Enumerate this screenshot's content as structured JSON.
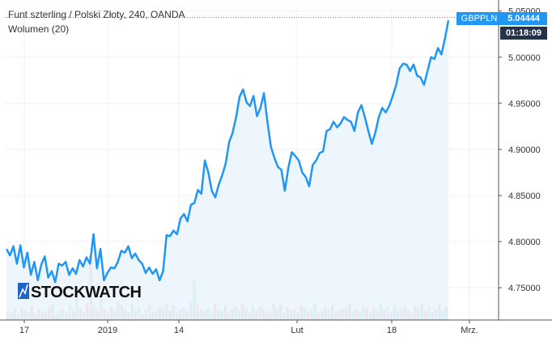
{
  "header": {
    "title": "Funt szterling / Polski Złoty, 240, OANDA",
    "volume_label": "Wolumen (20)"
  },
  "price_badge": {
    "symbol": "GBPPLN",
    "price": "5.04444",
    "countdown": "01:18:09"
  },
  "watermark": "STOCKWATCH",
  "colors": {
    "line": "#2196F3",
    "area": "#EAF4FD",
    "volume_up": "#A9D6D2",
    "volume_down": "#F2B5B5",
    "badge_blue": "#2196F3",
    "badge_dark": "#253248"
  },
  "chart_data": {
    "type": "line",
    "title": "Funt szterling / Polski Złoty, 240, OANDA",
    "ylim": [
      4.715,
      5.055
    ],
    "y_ticks": [
      "4.75000",
      "4.80000",
      "4.85000",
      "4.90000",
      "4.95000",
      "5.00000",
      "5.05000"
    ],
    "x_ticks": [
      "17",
      "2019",
      "14",
      "Lut",
      "18",
      "Mrz."
    ],
    "series": [
      {
        "values": [
          4.792,
          4.785,
          4.795,
          4.776,
          4.796,
          4.772,
          4.788,
          4.764,
          4.778,
          4.758,
          4.775,
          4.784,
          4.761,
          4.768,
          4.756,
          4.776,
          4.774,
          4.778,
          4.764,
          4.771,
          4.765,
          4.78,
          4.773,
          4.783,
          4.776,
          4.808,
          4.771,
          4.792,
          4.758,
          4.766,
          4.772,
          4.771,
          4.778,
          4.79,
          4.788,
          4.795,
          4.782,
          4.787,
          4.78,
          4.776,
          4.766,
          4.772,
          4.765,
          4.77,
          4.758,
          4.768,
          4.807,
          4.806,
          4.812,
          4.808,
          4.825,
          4.83,
          4.822,
          4.84,
          4.842,
          4.856,
          4.852,
          4.888,
          4.875,
          4.855,
          4.848,
          4.862,
          4.872,
          4.885,
          4.908,
          4.918,
          4.935,
          4.957,
          4.965,
          4.951,
          4.947,
          4.958,
          4.936,
          4.945,
          4.961,
          4.93,
          4.903,
          4.891,
          4.881,
          4.878,
          4.855,
          4.88,
          4.897,
          4.893,
          4.888,
          4.875,
          4.87,
          4.86,
          4.883,
          4.888,
          4.896,
          4.898,
          4.92,
          4.922,
          4.93,
          4.924,
          4.928,
          4.935,
          4.932,
          4.93,
          4.92,
          4.94,
          4.948,
          4.935,
          4.92,
          4.906,
          4.918,
          4.935,
          4.945,
          4.94,
          4.947,
          4.958,
          4.97,
          4.988,
          4.993,
          4.992,
          4.985,
          4.992,
          4.98,
          4.978,
          4.97,
          4.985,
          5.0,
          4.998,
          5.01,
          5.003,
          5.02,
          5.04
        ]
      }
    ],
    "volume": [
      5,
      4,
      6,
      3,
      7,
      5,
      4,
      8,
      3,
      6,
      5,
      4,
      7,
      9,
      3,
      5,
      6,
      4,
      8,
      5,
      12,
      6,
      4,
      9,
      35,
      8,
      5,
      14,
      6,
      4,
      7,
      5,
      10,
      8,
      6,
      4,
      9,
      5,
      7,
      3,
      6,
      8,
      4,
      5,
      7,
      6,
      9,
      5,
      8,
      4,
      6,
      7,
      5,
      10,
      22,
      8,
      6,
      5,
      7,
      4,
      9,
      6,
      5,
      8,
      4,
      6,
      7,
      5,
      9,
      6,
      4,
      8,
      5,
      7,
      6,
      4,
      5,
      9,
      6,
      8,
      4,
      7,
      5,
      6,
      4,
      8,
      7,
      5,
      6,
      9,
      4,
      5,
      7,
      6,
      8,
      4,
      5,
      6,
      7,
      9,
      4,
      6,
      5,
      8,
      7,
      4,
      6,
      5,
      9,
      6,
      7,
      4,
      8,
      5,
      6,
      7,
      5,
      4,
      8,
      6,
      9,
      5,
      7,
      4,
      6,
      8,
      5,
      7
    ],
    "volume_direction": [
      "d",
      "u",
      "d",
      "u",
      "d",
      "u",
      "u",
      "d",
      "u",
      "d",
      "u",
      "d",
      "d",
      "u",
      "d",
      "u",
      "u",
      "d",
      "u",
      "d",
      "u",
      "d",
      "u",
      "d",
      "d",
      "u",
      "d",
      "u",
      "d",
      "u",
      "d",
      "u",
      "u",
      "d",
      "u",
      "d",
      "u",
      "d",
      "u",
      "d",
      "u",
      "u",
      "d",
      "u",
      "d",
      "u",
      "u",
      "d",
      "u",
      "u",
      "d",
      "u",
      "d",
      "u",
      "u",
      "d",
      "u",
      "d",
      "u",
      "u",
      "d",
      "u",
      "u",
      "d",
      "u",
      "d",
      "u",
      "u",
      "d",
      "u",
      "d",
      "u",
      "d",
      "u",
      "d",
      "u",
      "d",
      "u",
      "d",
      "u",
      "u",
      "d",
      "u",
      "d",
      "u",
      "d",
      "u",
      "d",
      "u",
      "u",
      "d",
      "u",
      "d",
      "u",
      "u",
      "d",
      "u",
      "d",
      "u",
      "d",
      "u",
      "d",
      "u",
      "u",
      "d",
      "u",
      "d",
      "u",
      "u",
      "d",
      "u",
      "d",
      "u",
      "u",
      "d",
      "u",
      "d",
      "u",
      "d",
      "u",
      "u",
      "d",
      "u",
      "d",
      "u",
      "d",
      "u",
      "u"
    ]
  }
}
